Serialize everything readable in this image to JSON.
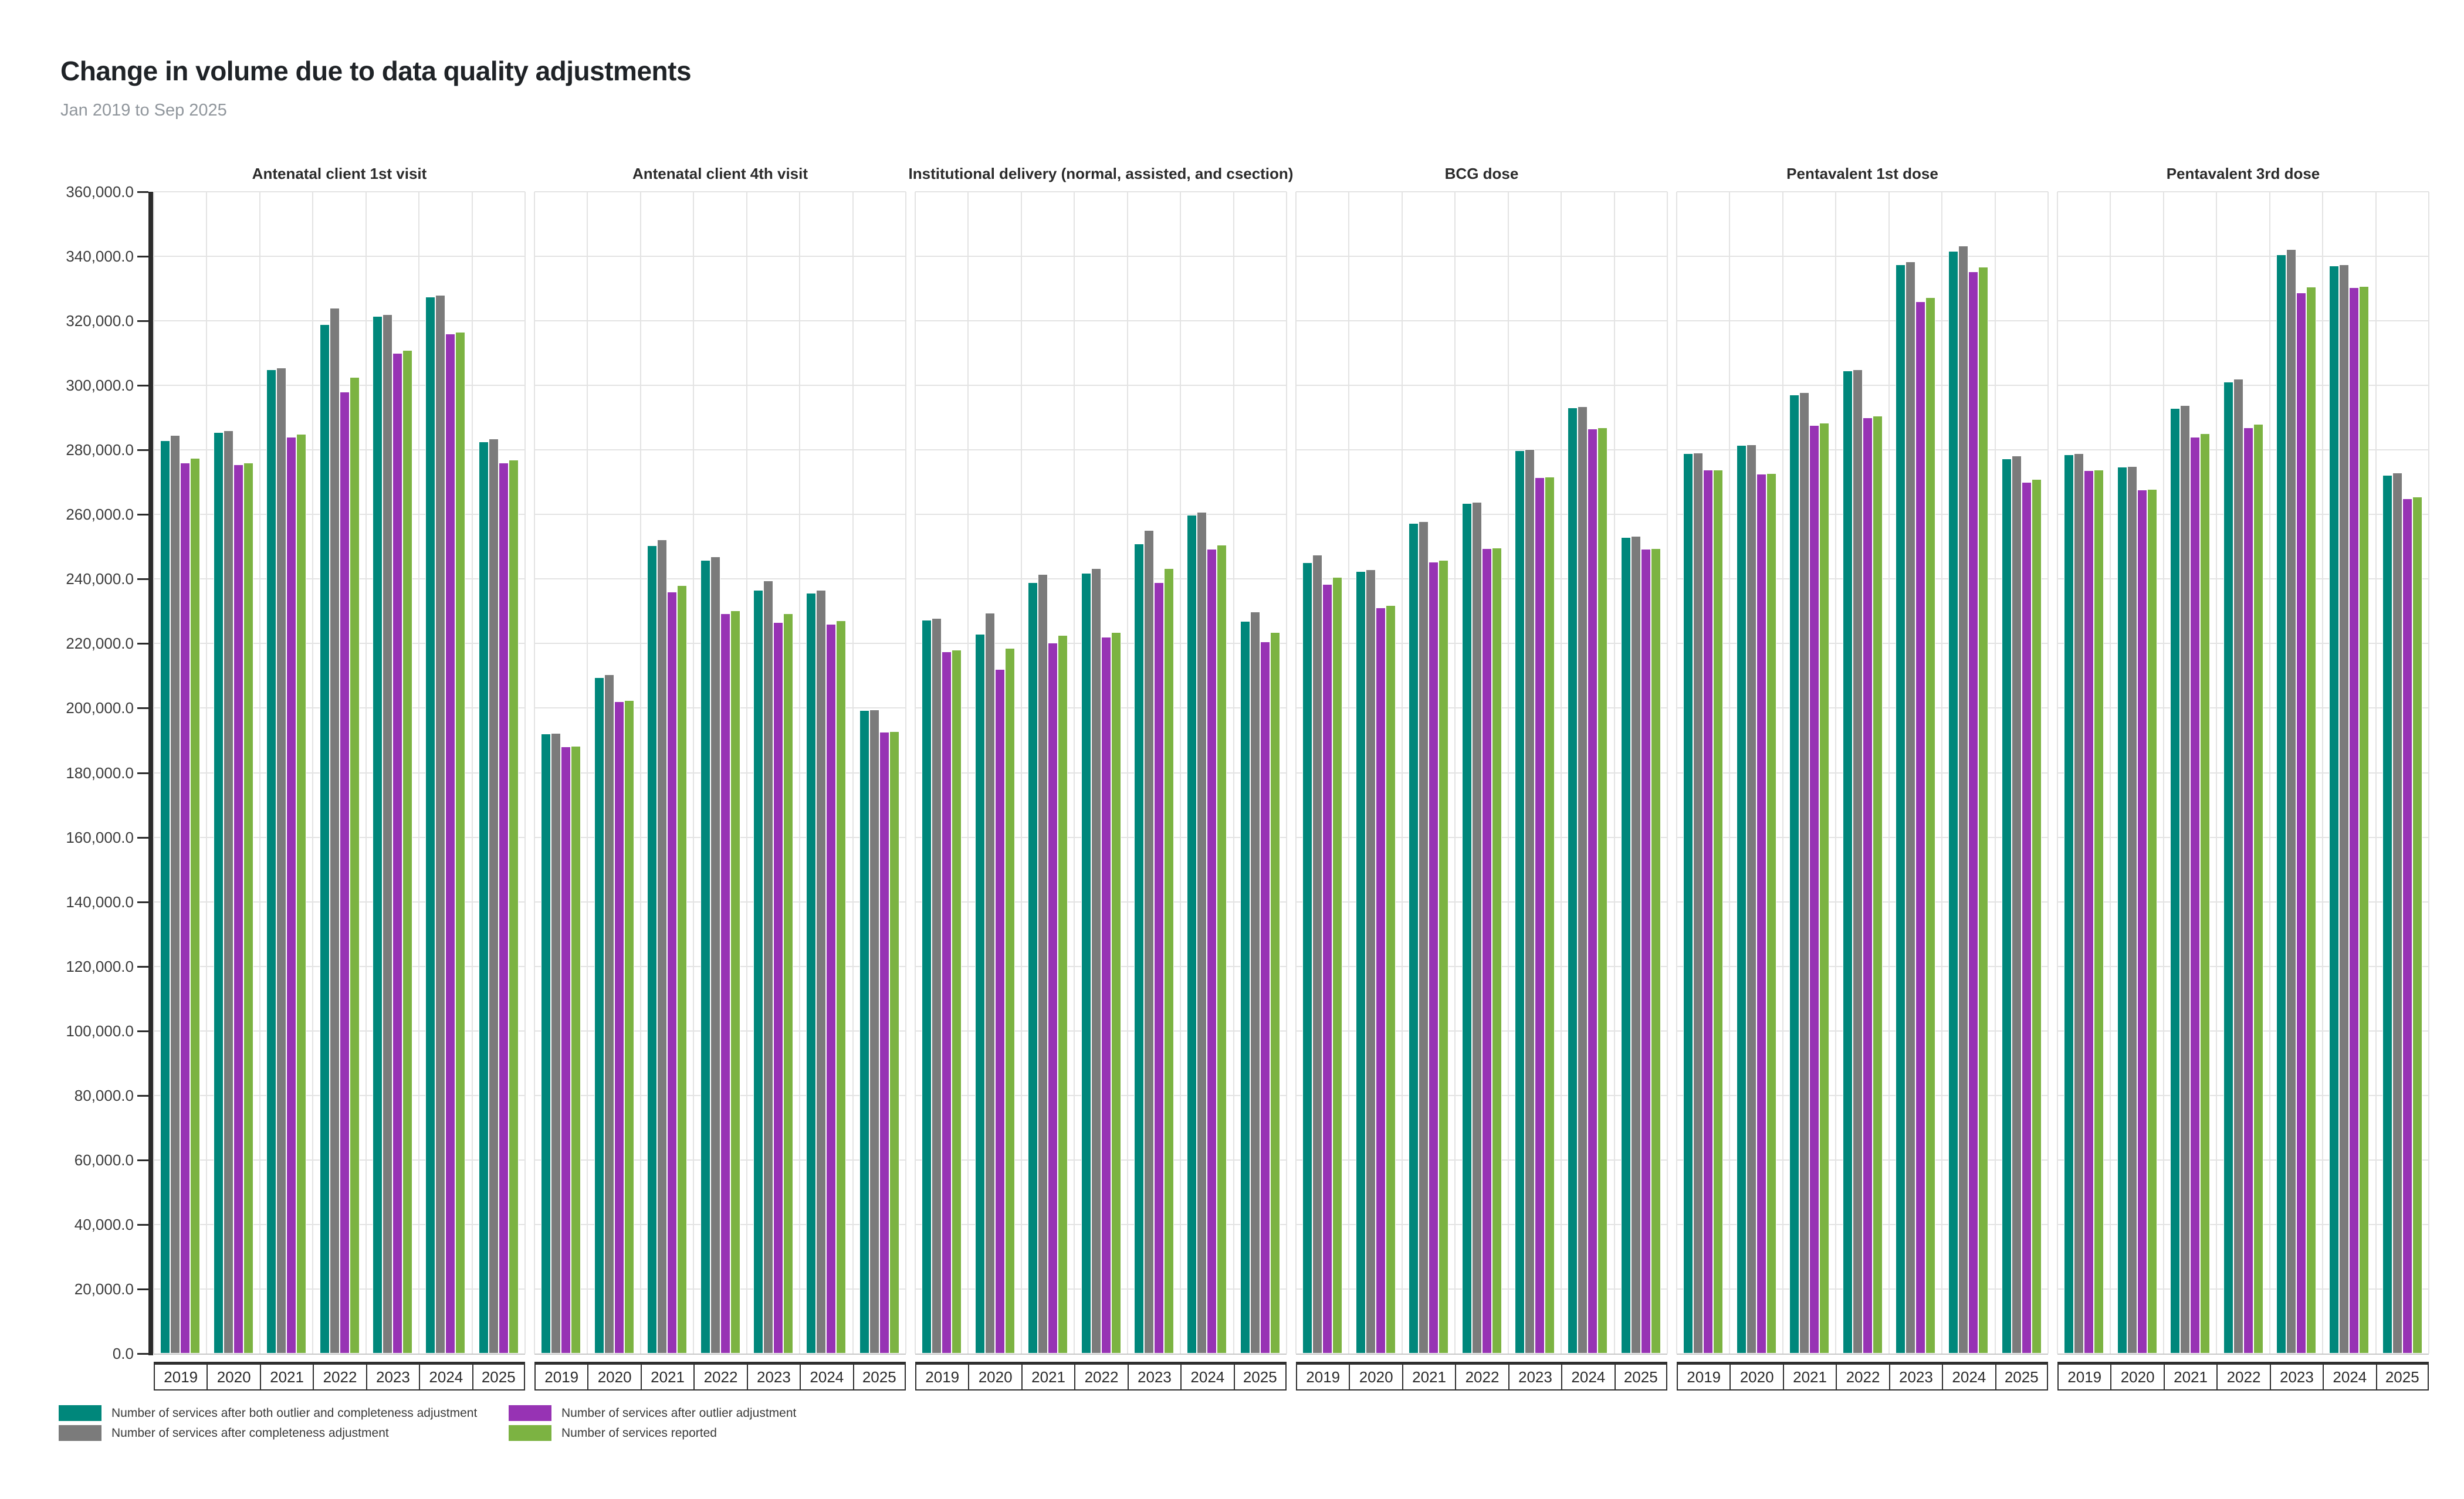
{
  "header": {
    "title": "Change in volume due to data quality adjustments",
    "subtitle": "Jan 2019 to Sep 2025"
  },
  "colors": {
    "teal": "#00877B",
    "gray": "#7B7B7B",
    "purple": "#9733B4",
    "green": "#7CB342",
    "axis": "#2B2B2B",
    "grid": "#E3E3E3",
    "panel_border": "#D9D9D9",
    "baseline": "#C8C8C8",
    "title_text": "#1F2327",
    "subtitle_text": "#90969C"
  },
  "y_axis": {
    "tick_labels": [
      "0.0",
      "20,000.0",
      "40,000.0",
      "60,000.0",
      "80,000.0",
      "100,000.0",
      "120,000.0",
      "140,000.0",
      "160,000.0",
      "180,000.0",
      "200,000.0",
      "220,000.0",
      "240,000.0",
      "260,000.0",
      "280,000.0",
      "300,000.0",
      "320,000.0",
      "340,000.0",
      "360,000.0"
    ],
    "tick_step": 20000,
    "max": 360000
  },
  "legend": {
    "items": [
      {
        "label": "Number of services after both outlier and completeness adjustment",
        "color": "#00877B"
      },
      {
        "label": "Number of services after completeness adjustment",
        "color": "#7B7B7B"
      },
      {
        "label": "Number of services after outlier adjustment",
        "color": "#9733B4"
      },
      {
        "label": "Number of services reported",
        "color": "#7CB342"
      }
    ]
  },
  "chart_data": {
    "type": "bar",
    "grid": true,
    "legend_position": "bottom-left",
    "ylim": [
      0,
      360000
    ],
    "categories": [
      "2019",
      "2020",
      "2021",
      "2022",
      "2023",
      "2024",
      "2025"
    ],
    "series_names": [
      "Number of services after both outlier and completeness adjustment",
      "Number of services after completeness adjustment",
      "Number of services after outlier adjustment",
      "Number of services reported"
    ],
    "series_colors": [
      "#00877B",
      "#7B7B7B",
      "#9733B4",
      "#7CB342"
    ],
    "panels": [
      {
        "title": "Antenatal client 1st visit",
        "series": [
          {
            "name": "Number of services after both outlier and completeness adjustment",
            "values": [
              283000,
              285500,
              305000,
              319000,
              321500,
              327500,
              282500
            ]
          },
          {
            "name": "Number of services after completeness adjustment",
            "values": [
              284500,
              286000,
              305500,
              324000,
              322000,
              328000,
              283500
            ]
          },
          {
            "name": "Number of services after outlier adjustment",
            "values": [
              276000,
              275500,
              284000,
              298000,
              310000,
              316000,
              276000
            ]
          },
          {
            "name": "Number of services reported",
            "values": [
              277500,
              276000,
              285000,
              302500,
              311000,
              316500,
              277000
            ]
          }
        ]
      },
      {
        "title": "Antenatal client 4th visit",
        "series": [
          {
            "name": "Number of services after both outlier and completeness adjustment",
            "values": [
              192000,
              209500,
              250500,
              245800,
              236600,
              235700,
              199300
            ]
          },
          {
            "name": "Number of services after completeness adjustment",
            "values": [
              192300,
              210500,
              252300,
              246900,
              239500,
              236600,
              199500
            ]
          },
          {
            "name": "Number of services after outlier adjustment",
            "values": [
              188000,
              202000,
              236000,
              229300,
              226600,
              226000,
              192700
            ]
          },
          {
            "name": "Number of services reported",
            "values": [
              188200,
              202500,
              238000,
              230200,
              229300,
              227200,
              192800
            ]
          }
        ]
      },
      {
        "title": "Institutional delivery (normal, assisted, and csection)",
        "series": [
          {
            "name": "Number of services after both outlier and completeness adjustment",
            "values": [
              227400,
              223000,
              239000,
              241900,
              250900,
              259800,
              227000
            ]
          },
          {
            "name": "Number of services after completeness adjustment",
            "values": [
              227800,
              229600,
              241600,
              243300,
              255100,
              260800,
              229800
            ]
          },
          {
            "name": "Number of services after outlier adjustment",
            "values": [
              217500,
              212000,
              220200,
              222000,
              239000,
              249300,
              220600
            ]
          },
          {
            "name": "Number of services reported",
            "values": [
              218000,
              218700,
              222700,
              223500,
              243300,
              250600,
              223500
            ]
          }
        ]
      },
      {
        "title": "BCG dose",
        "series": [
          {
            "name": "Number of services after both outlier and completeness adjustment",
            "values": [
              245100,
              242400,
              257300,
              263500,
              279800,
              293100,
              253000
            ]
          },
          {
            "name": "Number of services after completeness adjustment",
            "values": [
              247500,
              243000,
              257800,
              263800,
              280200,
              293500,
              253300
            ]
          },
          {
            "name": "Number of services after outlier adjustment",
            "values": [
              238400,
              231100,
              245300,
              249600,
              271500,
              286500,
              249400
            ]
          },
          {
            "name": "Number of services reported",
            "values": [
              240600,
              231800,
              245900,
              249700,
              271700,
              287000,
              249600
            ]
          }
        ]
      },
      {
        "title": "Pentavalent 1st dose",
        "series": [
          {
            "name": "Number of services after both outlier and completeness adjustment",
            "values": [
              279000,
              281500,
              297200,
              304500,
              337500,
              341600,
              277300
            ]
          },
          {
            "name": "Number of services after completeness adjustment",
            "values": [
              279200,
              281600,
              297900,
              305000,
              338400,
              343200,
              278200
            ]
          },
          {
            "name": "Number of services after outlier adjustment",
            "values": [
              273800,
              272500,
              287600,
              290100,
              326000,
              335300,
              270100
            ]
          },
          {
            "name": "Number of services reported",
            "values": [
              273900,
              272700,
              288400,
              290500,
              327200,
              336700,
              271000
            ]
          }
        ]
      },
      {
        "title": "Pentavalent 3rd dose",
        "series": [
          {
            "name": "Number of services after both outlier and completeness adjustment",
            "values": [
              278500,
              274800,
              292900,
              301100,
              340500,
              337100,
              272200
            ]
          },
          {
            "name": "Number of services after completeness adjustment",
            "values": [
              278900,
              274900,
              293900,
              302000,
              342200,
              337500,
              272900
            ]
          },
          {
            "name": "Number of services after outlier adjustment",
            "values": [
              273600,
              267600,
              284100,
              286900,
              328700,
              330300,
              264900
            ]
          },
          {
            "name": "Number of services reported",
            "values": [
              273900,
              267900,
              285100,
              288000,
              330500,
              330800,
              265500
            ]
          }
        ]
      }
    ]
  }
}
